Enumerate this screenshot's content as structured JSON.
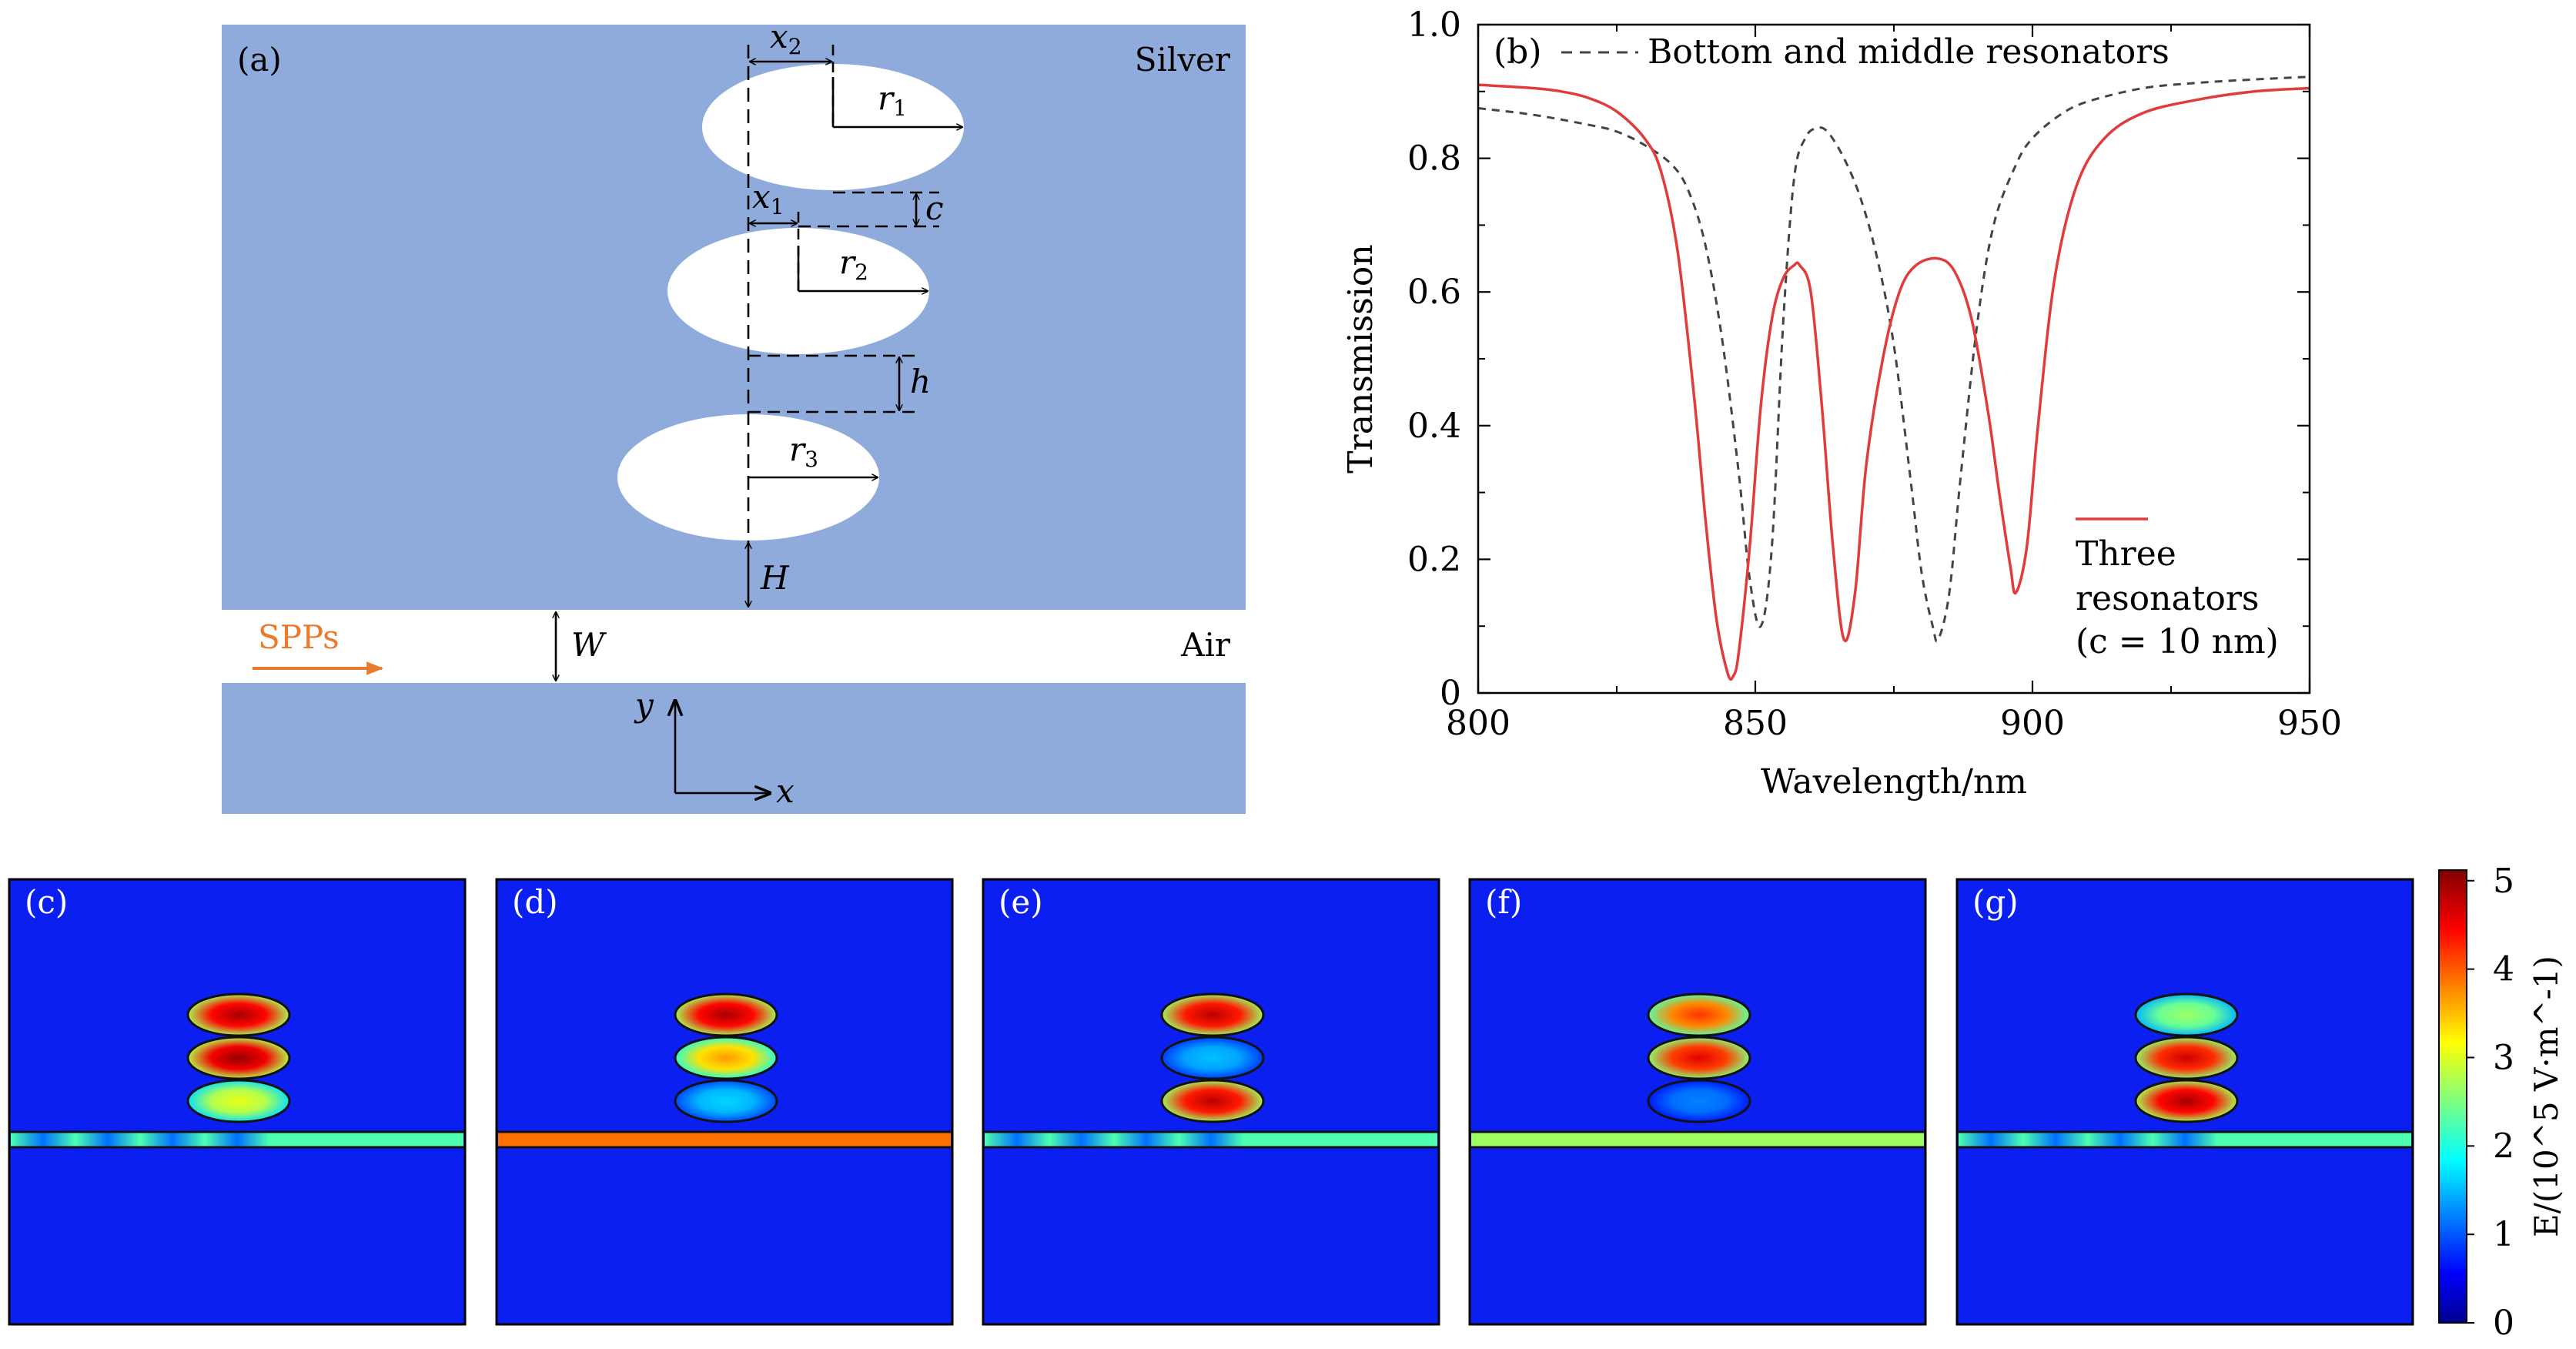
{
  "panel_a": {
    "label": "(a)",
    "material_top": "Silver",
    "material_gap": "Air",
    "spp_label": "SPPs",
    "labels": {
      "x2": "x",
      "x2_sub": "2",
      "x1": "x",
      "x1_sub": "1",
      "r1": "r",
      "r1_sub": "1",
      "r2": "r",
      "r2_sub": "2",
      "r3": "r",
      "r3_sub": "3",
      "c": "c",
      "h": "h",
      "H": "H",
      "W": "W",
      "axis_y": "y",
      "axis_x": "x"
    },
    "colors": {
      "silver": "#8fabdc",
      "air": "#ffffff",
      "spp": "#e87b2e"
    }
  },
  "panel_b": {
    "label": "(b)",
    "legend_dashed": "Bottom and middle resonators",
    "legend_solid_lines": [
      "Three",
      "resonators",
      "(c = 10 nm)"
    ],
    "xlabel": "Wavelength/nm",
    "ylabel": "Transmission",
    "x_ticks": [
      "800",
      "850",
      "900",
      "950"
    ],
    "y_ticks": [
      "0",
      "0.2",
      "0.4",
      "0.6",
      "0.8",
      "1.0"
    ]
  },
  "chart_data": {
    "type": "line",
    "xlabel": "Wavelength/nm",
    "ylabel": "Transmission",
    "xlim": [
      800,
      950
    ],
    "ylim": [
      0,
      1.0
    ],
    "legend_placement": "top-left (dashed), bottom-right (solid)",
    "series": [
      {
        "name": "Bottom and middle resonators",
        "style": "dashed",
        "color": "#444444",
        "x": [
          800,
          810,
          820,
          825,
          830,
          835,
          838,
          841,
          844,
          847,
          849,
          851,
          853,
          855,
          857,
          859,
          861,
          863,
          866,
          869,
          872,
          875,
          878,
          880,
          882,
          883,
          885,
          887,
          890,
          893,
          897,
          900,
          905,
          910,
          920,
          930,
          940,
          950
        ],
        "y": [
          0.875,
          0.865,
          0.85,
          0.84,
          0.82,
          0.79,
          0.75,
          0.67,
          0.53,
          0.33,
          0.17,
          0.1,
          0.22,
          0.55,
          0.77,
          0.83,
          0.845,
          0.84,
          0.8,
          0.74,
          0.65,
          0.52,
          0.32,
          0.18,
          0.1,
          0.08,
          0.15,
          0.32,
          0.55,
          0.7,
          0.79,
          0.83,
          0.865,
          0.885,
          0.905,
          0.913,
          0.918,
          0.922
        ]
      },
      {
        "name": "Three resonators (c = 10 nm)",
        "style": "solid",
        "color": "#e23b3b",
        "x": [
          800,
          810,
          815,
          820,
          825,
          830,
          833,
          836,
          839,
          841,
          843,
          845,
          846,
          847,
          849,
          851,
          853,
          855,
          857,
          858,
          860,
          862,
          864,
          866,
          868,
          870,
          873,
          876,
          879,
          883,
          886,
          889,
          892,
          894,
          896,
          897,
          899,
          901,
          904,
          908,
          913,
          920,
          930,
          940,
          950
        ],
        "y": [
          0.91,
          0.905,
          0.9,
          0.89,
          0.87,
          0.83,
          0.78,
          0.66,
          0.44,
          0.26,
          0.11,
          0.03,
          0.025,
          0.06,
          0.22,
          0.43,
          0.56,
          0.62,
          0.64,
          0.64,
          0.6,
          0.43,
          0.22,
          0.08,
          0.15,
          0.34,
          0.5,
          0.6,
          0.64,
          0.65,
          0.63,
          0.56,
          0.42,
          0.3,
          0.19,
          0.15,
          0.22,
          0.4,
          0.62,
          0.76,
          0.83,
          0.868,
          0.888,
          0.9,
          0.905
        ]
      }
    ]
  },
  "field_maps": {
    "colorbar_label": "E/(10^5 V·m^-1)",
    "colorbar_ticks": [
      "0",
      "1",
      "2",
      "3",
      "4",
      "5"
    ],
    "panels": [
      {
        "label": "(c)",
        "cav_top": 4.8,
        "cav_mid": 4.9,
        "cav_bottom": 3.0,
        "wg": 2.2
      },
      {
        "label": "(d)",
        "cav_top": 4.8,
        "cav_mid": 3.6,
        "cav_bottom": 1.6,
        "wg": 3.8
      },
      {
        "label": "(e)",
        "cav_top": 4.7,
        "cav_mid": 1.5,
        "cav_bottom": 4.7,
        "wg": 2.2
      },
      {
        "label": "(f)",
        "cav_top": 4.1,
        "cav_mid": 4.5,
        "cav_bottom": 1.2,
        "wg": 2.6
      },
      {
        "label": "(g)",
        "cav_top": 2.6,
        "cav_mid": 4.6,
        "cav_bottom": 4.8,
        "wg": 2.2
      }
    ]
  }
}
